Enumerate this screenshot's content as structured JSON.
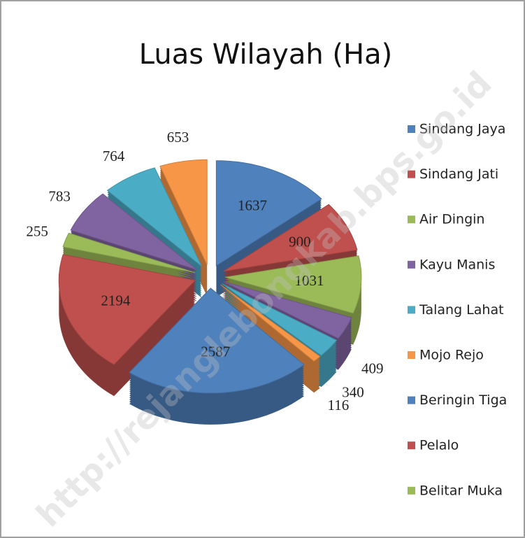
{
  "chart_data": {
    "type": "pie3d",
    "title": "Luas Wilayah (Ha)",
    "categories": [
      "Sindang Jaya",
      "Sindang Jati",
      "Air Dingin",
      "Kayu Manis",
      "Talang Lahat",
      "Mojo Rejo",
      "Beringin Tiga",
      "Pelalo",
      "Belitar Muka",
      null,
      null,
      null
    ],
    "values": [
      1637,
      900,
      1031,
      409,
      340,
      116,
      2587,
      2194,
      255,
      783,
      764,
      653
    ],
    "colors": [
      "#4f81bd",
      "#c0504d",
      "#9bbb59",
      "#8064a2",
      "#4bacc6",
      "#f79646",
      "#4f81bd",
      "#c0504d",
      "#9bbb59",
      "#8064a2",
      "#4bacc6",
      "#f79646"
    ],
    "legend": "right",
    "watermark": "http://rejanglebongkab.bps.go.id"
  }
}
